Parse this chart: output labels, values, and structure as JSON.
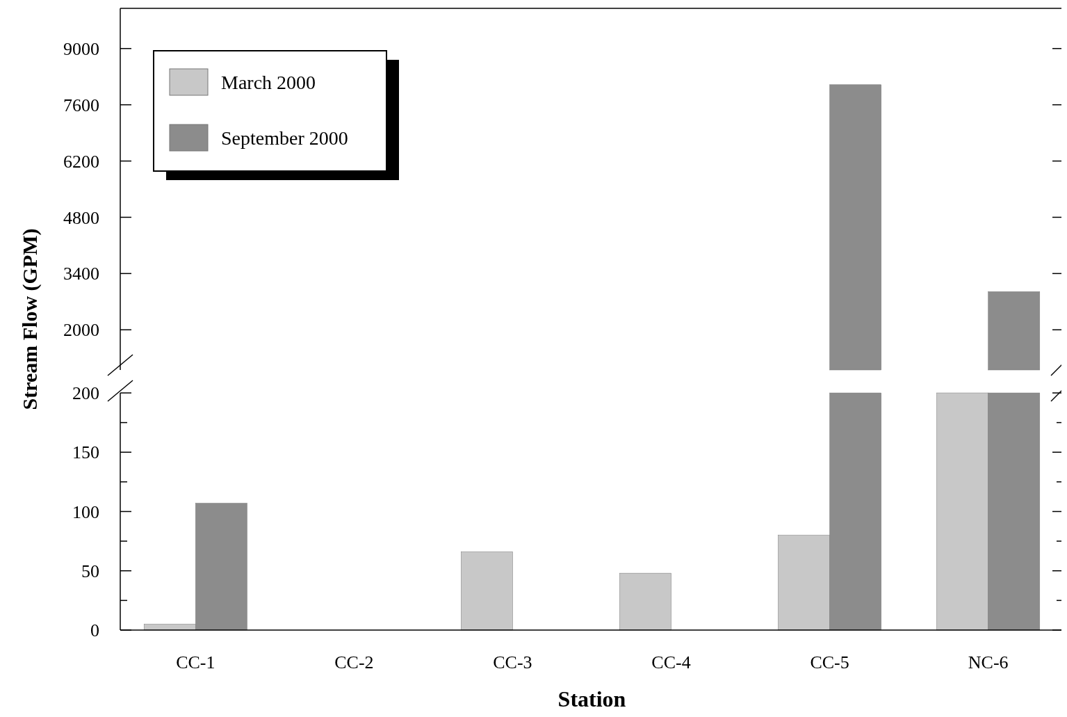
{
  "chart_data": [
    {
      "type": "bar",
      "categories": [
        null,
        null,
        null,
        null,
        null,
        null
      ],
      "series": [
        {
          "name": "March 2000",
          "color": "#c8c8c8",
          "values": [
            null,
            null,
            null,
            null,
            null,
            null
          ]
        },
        {
          "name": "September 2000",
          "color": "#8c8c8c",
          "values": [
            null,
            null,
            null,
            null,
            8100,
            2950
          ]
        }
      ],
      "ylim": [
        1000,
        10000
      ],
      "yticks": [
        2000,
        3400,
        4800,
        6200,
        7600,
        9000
      ],
      "tick_labels": "y",
      "legend": "top left"
    },
    {
      "type": "bar",
      "categories": [
        "CC-1",
        "CC-2",
        "CC-3",
        "CC-4",
        "CC-5",
        "NC-6"
      ],
      "series": [
        {
          "color": "#c8c8c8",
          "values": [
            5,
            0,
            66,
            48,
            80,
            200
          ]
        },
        {
          "color": "#8c8c8c",
          "values": [
            107,
            0,
            0,
            0,
            200,
            200
          ]
        }
      ],
      "ylim": [
        0,
        200
      ],
      "yticks": [
        0,
        {
          "value": 25,
          "label": null
        },
        50,
        {
          "value": 75,
          "label": null
        },
        100,
        {
          "value": 125,
          "label": null
        },
        150,
        {
          "value": 175,
          "label": null
        },
        200
      ],
      "xlabel": "Station",
      "ylabel": "Stream Flow (GPM)"
    }
  ]
}
